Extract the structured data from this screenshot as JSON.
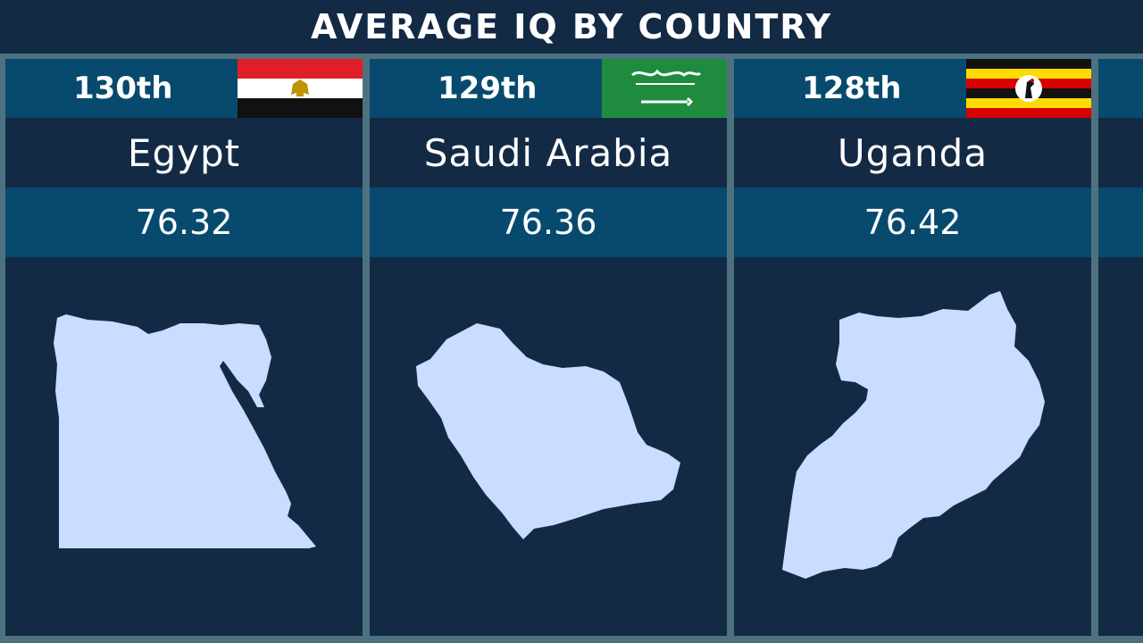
{
  "title": "AVERAGE IQ BY COUNTRY",
  "colors": {
    "background": "#132a45",
    "band": "#074a6e",
    "divider": "#4e7180",
    "country_shape": "#cadcff",
    "text": "#ffffff"
  },
  "chart_data": {
    "type": "table",
    "title": "AVERAGE IQ BY COUNTRY",
    "columns": [
      "rank",
      "country",
      "average_iq"
    ],
    "rows": [
      {
        "rank": "130th",
        "country": "Egypt",
        "value": "76.32",
        "flag": "egypt-flag-icon",
        "map": "egypt-map-icon"
      },
      {
        "rank": "129th",
        "country": "Saudi Arabia",
        "value": "76.36",
        "flag": "saudi-arabia-flag-icon",
        "map": "saudi-arabia-map-icon"
      },
      {
        "rank": "128th",
        "country": "Uganda",
        "value": "76.42",
        "flag": "uganda-flag-icon",
        "map": "uganda-map-icon"
      }
    ]
  }
}
